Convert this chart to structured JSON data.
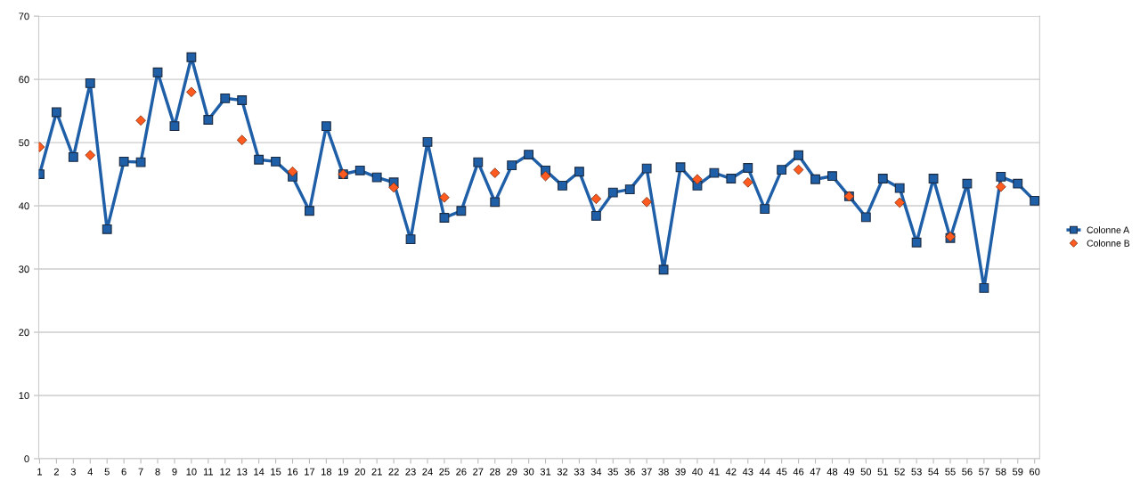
{
  "chart_data": {
    "type": "line",
    "categories": [
      "1",
      "2",
      "3",
      "4",
      "5",
      "6",
      "7",
      "8",
      "9",
      "10",
      "11",
      "12",
      "13",
      "14",
      "15",
      "16",
      "17",
      "18",
      "19",
      "20",
      "21",
      "22",
      "23",
      "24",
      "25",
      "26",
      "27",
      "28",
      "29",
      "30",
      "31",
      "32",
      "33",
      "34",
      "35",
      "36",
      "37",
      "38",
      "39",
      "40",
      "41",
      "42",
      "43",
      "44",
      "45",
      "46",
      "47",
      "48",
      "49",
      "50",
      "51",
      "52",
      "53",
      "54",
      "55",
      "56",
      "57",
      "58",
      "59",
      "60"
    ],
    "series": [
      {
        "name": "Colonne A",
        "color": "#1f5fa8",
        "marker": "square",
        "values": [
          45.0,
          54.8,
          47.7,
          59.4,
          36.3,
          47.0,
          46.9,
          61.1,
          52.6,
          63.5,
          53.6,
          57.0,
          56.7,
          47.3,
          47.0,
          44.6,
          39.2,
          52.6,
          45.0,
          45.6,
          44.5,
          43.7,
          34.7,
          50.1,
          38.1,
          39.2,
          46.9,
          40.6,
          46.4,
          48.1,
          45.6,
          43.2,
          45.4,
          38.4,
          42.1,
          42.6,
          45.9,
          29.9,
          46.1,
          43.2,
          45.2,
          44.3,
          46.0,
          39.5,
          45.7,
          48.0,
          44.2,
          44.7,
          41.5,
          38.2,
          44.3,
          42.8,
          34.2,
          44.3,
          34.9,
          43.5,
          27.0,
          44.6,
          43.5,
          40.8
        ]
      },
      {
        "name": "Colonne B",
        "color": "#ff5a1f",
        "type": "scatter",
        "marker": "diamond",
        "values": [
          49.3,
          null,
          null,
          48.0,
          null,
          null,
          53.5,
          null,
          null,
          58.0,
          null,
          null,
          50.4,
          null,
          null,
          45.4,
          null,
          null,
          45.0,
          null,
          null,
          42.9,
          null,
          null,
          41.3,
          null,
          null,
          45.2,
          null,
          null,
          44.7,
          null,
          null,
          41.1,
          null,
          null,
          40.6,
          null,
          null,
          44.2,
          null,
          null,
          43.7,
          null,
          null,
          45.7,
          null,
          null,
          41.5,
          null,
          null,
          40.5,
          null,
          null,
          35.1,
          null,
          null,
          43.0,
          null,
          null
        ]
      }
    ],
    "ylim": [
      0,
      70
    ],
    "yticks": [
      0,
      10,
      20,
      30,
      40,
      50,
      60,
      70
    ],
    "grid": "y",
    "legend": "right"
  }
}
